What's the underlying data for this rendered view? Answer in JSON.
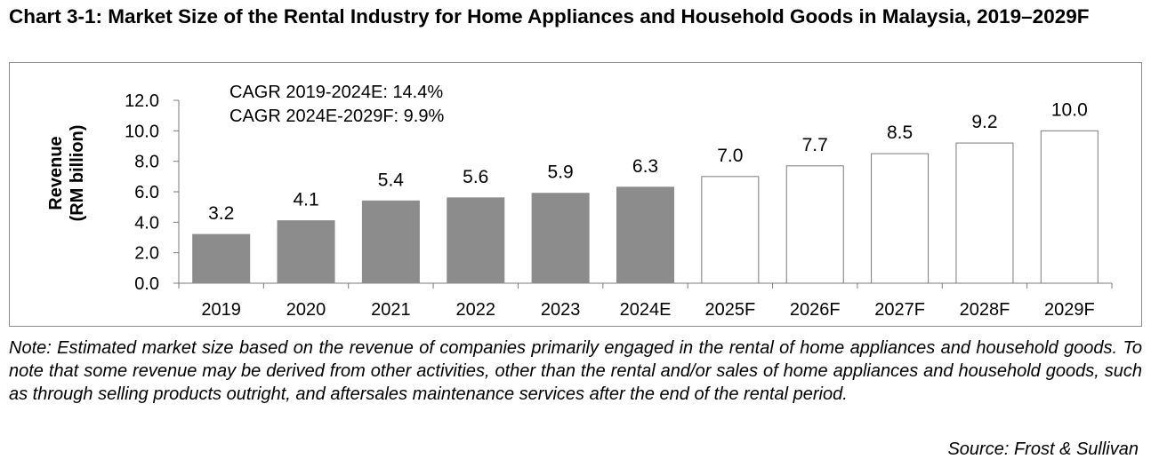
{
  "title": "Chart 3-1: Market Size of the Rental Industry for Home Appliances and Household Goods in Malaysia, 2019–2029F",
  "note": "Note: Estimated market size based on the revenue of companies primarily engaged in the rental of home appliances and household goods. To note that some revenue may be derived from other activities, other than the rental and/or sales of home appliances and household goods, such as through selling products outright, and aftersales maintenance services after the end of the rental period.",
  "source": "Source: Frost & Sullivan",
  "colors": {
    "actual": "#8c8c8c",
    "forecast": "#ffffff",
    "outline": "#7a7a7a"
  },
  "chart_data": {
    "type": "bar",
    "title": "Chart 3-1: Market Size of the Rental Industry for Home Appliances and Household Goods in Malaysia, 2019–2029F",
    "ylabel_line1": "Revenue",
    "ylabel_line2": "(RM billion)",
    "categories": [
      "2019",
      "2020",
      "2021",
      "2022",
      "2023",
      "2024E",
      "2025F",
      "2026F",
      "2027F",
      "2028F",
      "2029F"
    ],
    "values": [
      3.2,
      4.1,
      5.4,
      5.6,
      5.9,
      6.3,
      7.0,
      7.7,
      8.5,
      9.2,
      10.0
    ],
    "value_labels": [
      "3.2",
      "4.1",
      "5.4",
      "5.6",
      "5.9",
      "6.3",
      "7.0",
      "7.7",
      "8.5",
      "9.2",
      "10.0"
    ],
    "fill_style": [
      "actual",
      "actual",
      "actual",
      "actual",
      "actual",
      "actual",
      "forecast",
      "forecast",
      "forecast",
      "forecast",
      "forecast"
    ],
    "yticks": [
      "0.0",
      "2.0",
      "4.0",
      "6.0",
      "8.0",
      "10.0",
      "12.0"
    ],
    "ylim": [
      0,
      12
    ],
    "grid": false,
    "annotations": [
      "CAGR 2019-2024E: 14.4%",
      "CAGR 2024E-2029F: 9.9%"
    ]
  }
}
